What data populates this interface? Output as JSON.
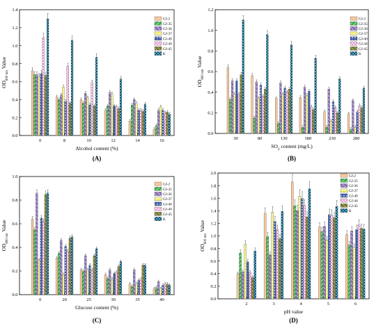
{
  "colors": {
    "GJ-2": "#f7c79a",
    "GJ-35": "#3bb04a",
    "GJ-36": "#8a6fb8",
    "GJ-37": "#f2ee70",
    "GJ-40": "#3f5fa8",
    "GJ-44": "#e77cc6",
    "GJ-45": "#7a7a32",
    "K": "#4ab8c4"
  },
  "chart_data": [
    {
      "panel": "(A)",
      "type": "bar",
      "xlabel": "Alcohol content (%)",
      "ylabel": "OD600 nm Value",
      "ylabel_main": "OD",
      "ylabel_sub": "600 nm",
      "ylabel_tail": " Value",
      "ylim": [
        0,
        1.4
      ],
      "yticks": [
        "0.0",
        "0.2",
        "0.4",
        "0.6",
        "0.8",
        "1.0",
        "1.2",
        "1.4"
      ],
      "categories": [
        "0",
        "8",
        "10",
        "12",
        "14",
        "16"
      ],
      "legend": [
        "GJ-2",
        "GJ-35",
        "GJ-36",
        "GJ-37",
        "GJ-40",
        "GJ-44",
        "GJ-45",
        "K"
      ],
      "series": [
        {
          "name": "GJ-2",
          "values": [
            0.72,
            0.43,
            0.4,
            0.28,
            0.16,
            0.07
          ]
        },
        {
          "name": "GJ-35",
          "values": [
            0.68,
            0.4,
            0.36,
            0.33,
            0.34,
            0.11
          ]
        },
        {
          "name": "GJ-36",
          "values": [
            0.68,
            0.45,
            0.47,
            0.48,
            0.4,
            0.28
          ]
        },
        {
          "name": "GJ-37",
          "values": [
            0.66,
            0.54,
            0.42,
            0.46,
            0.36,
            0.32
          ]
        },
        {
          "name": "GJ-40",
          "values": [
            0.69,
            0.38,
            0.34,
            0.33,
            0.28,
            0.28
          ]
        },
        {
          "name": "GJ-44",
          "values": [
            1.09,
            0.77,
            0.59,
            0.32,
            0.28,
            0.25
          ]
        },
        {
          "name": "GJ-45",
          "values": [
            0.67,
            0.36,
            0.33,
            0.3,
            0.27,
            0.26
          ]
        },
        {
          "name": "K",
          "values": [
            1.3,
            1.06,
            0.87,
            0.63,
            0.35,
            0.24
          ]
        }
      ]
    },
    {
      "panel": "(B)",
      "type": "bar",
      "xlabel": "SO2 content (mg/L)",
      "xlabel_main": "SO",
      "xlabel_sub": "2",
      "xlabel_tail": " content (mg/L)",
      "ylabel": "OD600 nm Value",
      "ylabel_main": "OD",
      "ylabel_sub": "600 nm",
      "ylabel_tail": " Value",
      "ylim": [
        0,
        1.2
      ],
      "yticks": [
        "0.0",
        "0.2",
        "0.4",
        "0.6",
        "0.8",
        "1.0",
        "1.2"
      ],
      "categories": [
        "30",
        "80",
        "130",
        "180",
        "230",
        "280"
      ],
      "legend": [
        "GJ-2",
        "GJ-35",
        "GJ-36",
        "GJ-37",
        "GJ-40",
        "GJ-44",
        "GJ-45",
        "K"
      ],
      "series": [
        {
          "name": "GJ-2",
          "values": [
            0.64,
            0.56,
            0.34,
            0.35,
            0.21,
            0.19
          ]
        },
        {
          "name": "GJ-35",
          "values": [
            0.33,
            0.15,
            0.1,
            0.06,
            0.06,
            0.04
          ]
        },
        {
          "name": "GJ-36",
          "values": [
            0.51,
            0.5,
            0.49,
            0.45,
            0.43,
            0.32
          ]
        },
        {
          "name": "GJ-37",
          "values": [
            0.38,
            0.34,
            0.38,
            0.37,
            0.12,
            0.06
          ]
        },
        {
          "name": "GJ-40",
          "values": [
            0.51,
            0.47,
            0.44,
            0.41,
            0.31,
            0.21
          ]
        },
        {
          "name": "GJ-44",
          "values": [
            0.38,
            0.36,
            0.4,
            0.26,
            0.25,
            0.27
          ]
        },
        {
          "name": "GJ-45",
          "values": [
            0.57,
            0.43,
            0.43,
            0.23,
            0.2,
            0.25
          ]
        },
        {
          "name": "K",
          "values": [
            1.1,
            0.96,
            0.86,
            0.73,
            0.53,
            0.44
          ]
        }
      ]
    },
    {
      "panel": "(C)",
      "type": "bar",
      "xlabel": "Glucose content (%)",
      "ylabel": "OD600 nm Value",
      "ylabel_main": "OD",
      "ylabel_sub": "600 nm",
      "ylabel_tail": " Value",
      "ylim": [
        0,
        1.0
      ],
      "yticks": [
        "0.0",
        "0.2",
        "0.4",
        "0.6",
        "0.8",
        "1.0"
      ],
      "categories": [
        "0",
        "20",
        "25",
        "30",
        "35",
        "40"
      ],
      "legend": [
        "GJ-2",
        "GJ-35",
        "GJ-36",
        "GJ-37",
        "GJ-40",
        "GJ-44",
        "GJ-45",
        "K"
      ],
      "series": [
        {
          "name": "GJ-2",
          "values": [
            0.64,
            0.31,
            0.21,
            0.17,
            0.09,
            0.05
          ]
        },
        {
          "name": "GJ-35",
          "values": [
            0.55,
            0.35,
            0.2,
            0.14,
            0.07,
            0.06
          ]
        },
        {
          "name": "GJ-36",
          "values": [
            0.86,
            0.46,
            0.33,
            0.21,
            0.21,
            0.11
          ]
        },
        {
          "name": "GJ-37",
          "values": [
            0.29,
            0.17,
            0.21,
            0.13,
            0.09,
            0.05
          ]
        },
        {
          "name": "GJ-40",
          "values": [
            0.65,
            0.41,
            0.25,
            0.18,
            0.12,
            0.08
          ]
        },
        {
          "name": "GJ-44",
          "values": [
            0.62,
            0.37,
            0.21,
            0.19,
            0.13,
            0.09
          ]
        },
        {
          "name": "GJ-45",
          "values": [
            0.85,
            0.48,
            0.33,
            0.24,
            0.25,
            0.09
          ]
        },
        {
          "name": "K",
          "values": [
            0.86,
            0.49,
            0.39,
            0.28,
            0.25,
            0.08
          ]
        }
      ]
    },
    {
      "panel": "(D)",
      "type": "bar",
      "xlabel": "pH value",
      "ylabel": "OD600 nm Value",
      "ylabel_main": "OD",
      "ylabel_sub": "600 nm",
      "ylabel_tail": " Value",
      "ylim": [
        0,
        2.0
      ],
      "yticks": [
        "0.0",
        "0.2",
        "0.4",
        "0.6",
        "0.8",
        "1.0",
        "1.2",
        "1.4",
        "1.6",
        "1.8",
        "2.0"
      ],
      "categories": [
        "2",
        "3",
        "4",
        "5",
        "6"
      ],
      "legend": [
        "GJ-2",
        "GJ-35",
        "GJ-36",
        "GJ-37",
        "GJ-40",
        "GJ-44",
        "GJ-45",
        "K"
      ],
      "series": [
        {
          "name": "GJ-2",
          "values": [
            0.4,
            1.36,
            1.86,
            1.14,
            1.02
          ]
        },
        {
          "name": "GJ-35",
          "values": [
            0.73,
            0.99,
            1.48,
            1.07,
            0.86
          ]
        },
        {
          "name": "GJ-36",
          "values": [
            0.43,
            0.7,
            1.4,
            1.15,
            1.08
          ]
        },
        {
          "name": "GJ-37",
          "values": [
            0.87,
            1.38,
            1.63,
            0.93,
            0.82
          ]
        },
        {
          "name": "GJ-40",
          "values": [
            0.59,
            1.23,
            1.6,
            1.34,
            1.1
          ]
        },
        {
          "name": "GJ-44",
          "values": [
            0.42,
            1.1,
            1.48,
            1.33,
            1.18
          ]
        },
        {
          "name": "GJ-45",
          "values": [
            0.34,
            0.96,
            1.3,
            1.29,
            1.12
          ]
        },
        {
          "name": "K",
          "values": [
            0.76,
            1.39,
            1.75,
            1.47,
            1.11
          ]
        }
      ]
    }
  ]
}
